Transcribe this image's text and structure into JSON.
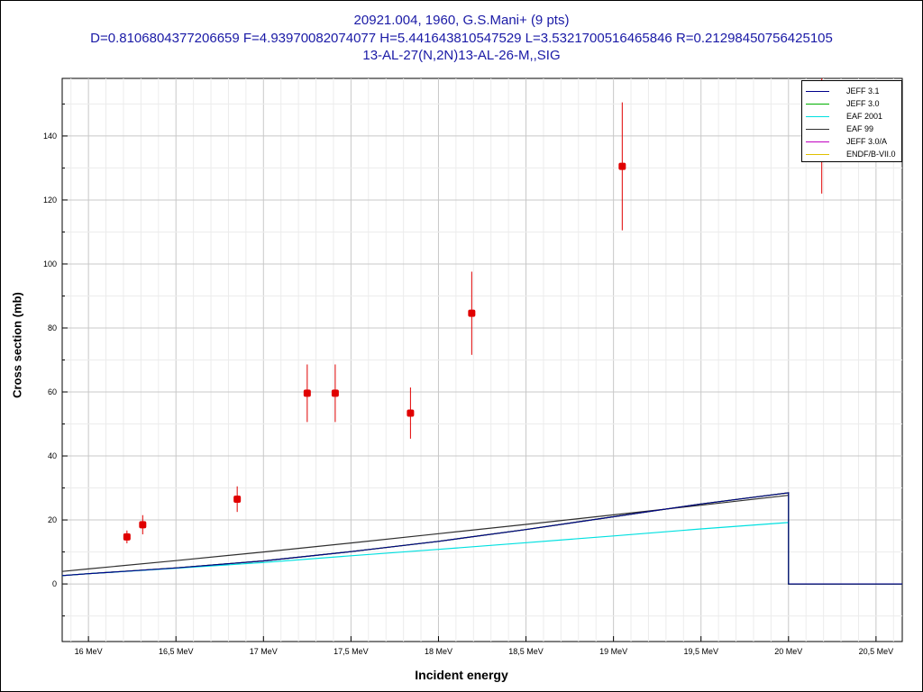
{
  "title": {
    "line1": "20921.004, 1960, G.S.Mani+ (9 pts)",
    "line2": "D=0.8106804377206659 F=4.93970082074077 H=5.441643810547529 L=3.5321700516465846 R=0.21298450756425105",
    "line3": "13-AL-27(N,2N)13-AL-26-M,,SIG"
  },
  "chart_data": {
    "type": "scatter",
    "xlabel": "Incident energy",
    "ylabel": "Cross section (mb)",
    "xlim": [
      15.85,
      20.65
    ],
    "ylim": [
      -18,
      158
    ],
    "x_unit": "MeV",
    "x_ticks": [
      "16 MeV",
      "16,5 MeV",
      "17 MeV",
      "17,5 MeV",
      "18 MeV",
      "18,5 MeV",
      "19 MeV",
      "19,5 MeV",
      "20 MeV",
      "20,5 MeV"
    ],
    "x_tick_values": [
      16,
      16.5,
      17,
      17.5,
      18,
      18.5,
      19,
      19.5,
      20,
      20.5
    ],
    "y_ticks": [
      0,
      20,
      40,
      60,
      80,
      100,
      120,
      140
    ],
    "grid": true,
    "legend_position": "top-right",
    "experimental_points": {
      "color": "#e00000",
      "points": [
        {
          "x": 16.22,
          "y": 14.7,
          "err": 2.0
        },
        {
          "x": 16.31,
          "y": 18.5,
          "err": 3.0
        },
        {
          "x": 16.85,
          "y": 26.5,
          "err": 4.0
        },
        {
          "x": 17.25,
          "y": 59.6,
          "err": 9.0
        },
        {
          "x": 17.41,
          "y": 59.6,
          "err": 9.0
        },
        {
          "x": 17.84,
          "y": 53.4,
          "err": 8.0
        },
        {
          "x": 18.19,
          "y": 84.6,
          "err": 13.0
        },
        {
          "x": 19.05,
          "y": 130.5,
          "err": 20.0
        },
        {
          "x": 20.19,
          "y": 140.0,
          "err": 18.0
        }
      ]
    },
    "series": [
      {
        "name": "JEFF 3.1",
        "color": "#00008b",
        "x": [
          15.85,
          16.0,
          16.5,
          17.0,
          17.5,
          18.0,
          18.5,
          19.0,
          19.5,
          20.0,
          20.0,
          20.65
        ],
        "y": [
          2.6,
          3.2,
          5.0,
          7.2,
          10.1,
          13.3,
          17.0,
          21.0,
          25.0,
          28.5,
          0,
          0
        ]
      },
      {
        "name": "JEFF 3.0",
        "color": "#00b000",
        "x": [
          15.85,
          16.0,
          16.5,
          17.0,
          17.5,
          18.0,
          18.5,
          19.0,
          19.5,
          20.0,
          20.0,
          20.65
        ],
        "y": [
          2.6,
          3.2,
          5.0,
          7.2,
          10.1,
          13.3,
          17.0,
          21.0,
          25.0,
          28.5,
          0,
          0
        ]
      },
      {
        "name": "EAF 2001",
        "color": "#00e0e0",
        "x": [
          15.85,
          16.0,
          16.5,
          17.0,
          17.5,
          18.0,
          18.5,
          19.0,
          19.5,
          20.0
        ],
        "y": [
          2.6,
          3.2,
          4.9,
          6.7,
          8.8,
          10.8,
          12.9,
          15.0,
          17.2,
          19.2
        ]
      },
      {
        "name": "EAF 99",
        "color": "#303030",
        "x": [
          15.85,
          16.0,
          16.5,
          17.0,
          17.5,
          18.0,
          18.5,
          19.0,
          19.5,
          20.0
        ],
        "y": [
          3.9,
          4.7,
          7.3,
          10.0,
          12.8,
          15.7,
          18.6,
          21.6,
          24.6,
          27.7
        ]
      },
      {
        "name": "JEFF 3.0/A",
        "color": "#c000c0",
        "x": [
          15.85,
          16.0,
          16.5,
          17.0,
          17.5,
          18.0,
          18.5,
          19.0,
          19.5,
          20.0,
          20.0,
          20.65
        ],
        "y": [
          2.6,
          3.2,
          5.0,
          7.2,
          10.1,
          13.3,
          17.0,
          21.0,
          25.0,
          28.5,
          0,
          0
        ]
      },
      {
        "name": "ENDF/B-VII.0",
        "color": "#e0c000",
        "x": [
          15.85,
          16.0,
          16.5,
          17.0,
          17.5,
          18.0,
          18.5,
          19.0,
          19.5,
          20.0,
          20.0,
          20.65
        ],
        "y": [
          2.6,
          3.2,
          5.0,
          7.2,
          10.1,
          13.3,
          17.0,
          21.0,
          25.0,
          28.5,
          0,
          0
        ]
      }
    ],
    "draw_order": [
      4,
      5,
      1,
      2,
      3,
      0
    ]
  }
}
